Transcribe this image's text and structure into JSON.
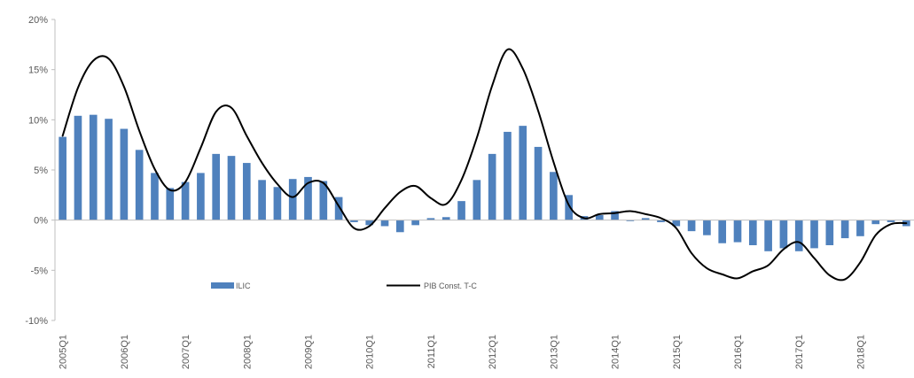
{
  "chart_data": {
    "type": "bar+line",
    "categories": [
      "2005Q1",
      "2005Q2",
      "2005Q3",
      "2005Q4",
      "2006Q1",
      "2006Q2",
      "2006Q3",
      "2006Q4",
      "2007Q1",
      "2007Q2",
      "2007Q3",
      "2007Q4",
      "2008Q1",
      "2008Q2",
      "2008Q3",
      "2008Q4",
      "2009Q1",
      "2009Q2",
      "2009Q3",
      "2009Q4",
      "2010Q1",
      "2010Q2",
      "2010Q3",
      "2010Q4",
      "2011Q1",
      "2011Q2",
      "2011Q3",
      "2011Q4",
      "2012Q1",
      "2012Q2",
      "2012Q3",
      "2012Q4",
      "2013Q1",
      "2013Q2",
      "2013Q3",
      "2013Q4",
      "2014Q1",
      "2014Q2",
      "2014Q3",
      "2014Q4",
      "2015Q1",
      "2015Q2",
      "2015Q3",
      "2015Q4",
      "2016Q1",
      "2016Q2",
      "2016Q3",
      "2016Q4",
      "2017Q1",
      "2017Q2",
      "2017Q3",
      "2017Q4",
      "2018Q1",
      "2018Q2",
      "2018Q3",
      "2018Q4"
    ],
    "x_tick_labels": [
      "2005Q1",
      "2006Q1",
      "2007Q1",
      "2008Q1",
      "2009Q1",
      "2010Q1",
      "2011Q1",
      "2012Q1",
      "2013Q1",
      "2014Q1",
      "2015Q1",
      "2016Q1",
      "2017Q1",
      "2018Q1"
    ],
    "y_tick_labels": [
      "20%",
      "15%",
      "10%",
      "5%",
      "0%",
      "-5%",
      "-10%"
    ],
    "ylim": [
      -10,
      20
    ],
    "grid": false,
    "legend_position": "bottom-left-inside",
    "series": [
      {
        "name": "ILIC",
        "type": "bar",
        "color": "#4f81bd",
        "values": [
          8.3,
          10.4,
          10.5,
          10.1,
          9.1,
          7.0,
          4.7,
          3.2,
          3.8,
          4.7,
          6.6,
          6.4,
          5.7,
          4.0,
          3.3,
          4.1,
          4.3,
          3.9,
          2.3,
          -0.2,
          -0.5,
          -0.6,
          -1.2,
          -0.5,
          0.2,
          0.3,
          1.9,
          4.0,
          6.6,
          8.8,
          9.4,
          7.3,
          4.8,
          2.5,
          0.4,
          0.5,
          0.9,
          -0.1,
          0.2,
          -0.2,
          -0.6,
          -1.1,
          -1.5,
          -2.3,
          -2.2,
          -2.5,
          -3.1,
          -2.8,
          -3.1,
          -2.8,
          -2.5,
          -1.8,
          -1.6,
          -0.4,
          -0.2,
          -0.6
        ]
      },
      {
        "name": "PIB Const. T-C",
        "type": "line",
        "color": "#000000",
        "values": [
          8.4,
          13.2,
          15.9,
          16.1,
          13.3,
          8.9,
          5.1,
          3.0,
          3.8,
          7.2,
          10.8,
          11.2,
          8.4,
          5.7,
          3.6,
          2.3,
          3.7,
          3.7,
          1.4,
          -0.8,
          -0.6,
          1.2,
          2.8,
          3.4,
          2.2,
          1.6,
          4.0,
          8.2,
          13.4,
          17.0,
          15.1,
          10.9,
          5.8,
          1.5,
          0.2,
          0.6,
          0.7,
          0.9,
          0.6,
          0.2,
          -0.8,
          -3.3,
          -4.8,
          -5.4,
          -5.8,
          -5.1,
          -4.5,
          -2.9,
          -2.2,
          -3.8,
          -5.5,
          -5.9,
          -4.2,
          -1.5,
          -0.4,
          -0.3
        ]
      }
    ]
  }
}
